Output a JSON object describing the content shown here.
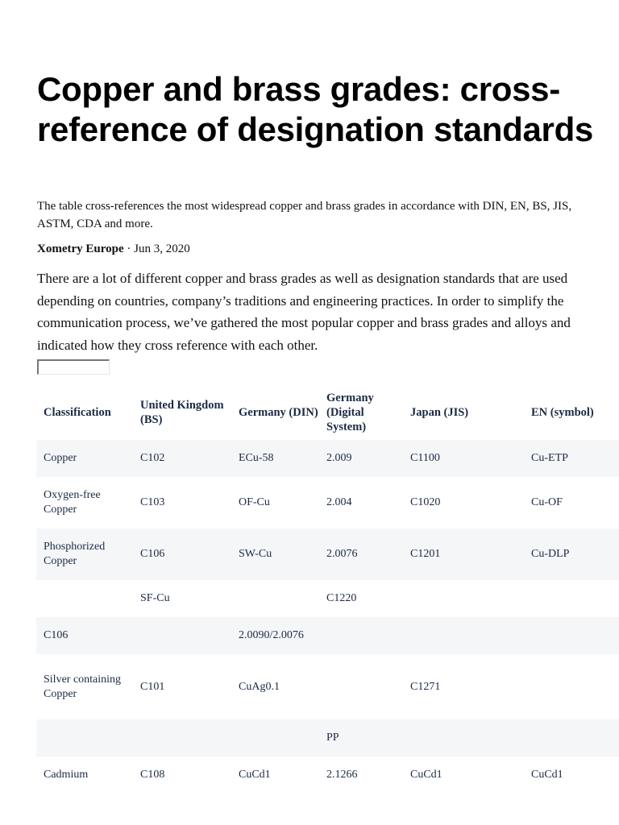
{
  "article": {
    "title": "Copper and brass grades: cross-reference of designation standards",
    "subtitle": "The table cross-references the most widespread copper and brass grades in accordance with DIN, EN, BS, JIS, ASTM, CDA and more.",
    "author": "Xometry Europe",
    "separator": " · ",
    "date": "Jun 3, 2020",
    "intro": "There are a lot of different copper and brass grades as well as designation standards that are used depending on countries, company’s traditions and engineering practices. In order to simplify the communication process, we’ve gathered the most popular copper and brass grades and alloys and indicated how they cross reference with each other.",
    "empty_input_value": ""
  },
  "table": {
    "headers": [
      "Classification",
      "United Kingdom (BS)",
      "Germany (DIN)",
      "Germany (Digital System)",
      "Japan (JIS)",
      "EN (symbol)"
    ],
    "rows": [
      [
        "Copper",
        "C102",
        "ECu-58",
        "2.009",
        "C1100",
        "Cu-ETP"
      ],
      [
        "Oxygen-free Copper",
        "C103",
        "OF-Cu",
        "2.004",
        "C1020",
        "Cu-OF"
      ],
      [
        "Phosphorized Copper",
        "C106",
        "SW-Cu",
        "2.0076",
        "C1201",
        "Cu-DLP"
      ],
      [
        "",
        "SF-Cu",
        "",
        "C1220",
        "",
        ""
      ],
      [
        "C106",
        "",
        "2.0090/2.0076",
        "",
        "",
        ""
      ],
      [
        "Silver containing Copper",
        "C101",
        "CuAg0.1",
        "",
        "C1271",
        ""
      ],
      [
        "",
        "",
        "",
        "PP",
        "",
        ""
      ],
      [
        "Cadmium",
        "C108",
        "CuCd1",
        "2.1266",
        "CuCd1",
        "CuCd1"
      ]
    ]
  },
  "colors": {
    "title_text": "#000000",
    "body_text": "#111111",
    "table_text": "#1b2a44",
    "row_shade": "#f5f6f8"
  }
}
